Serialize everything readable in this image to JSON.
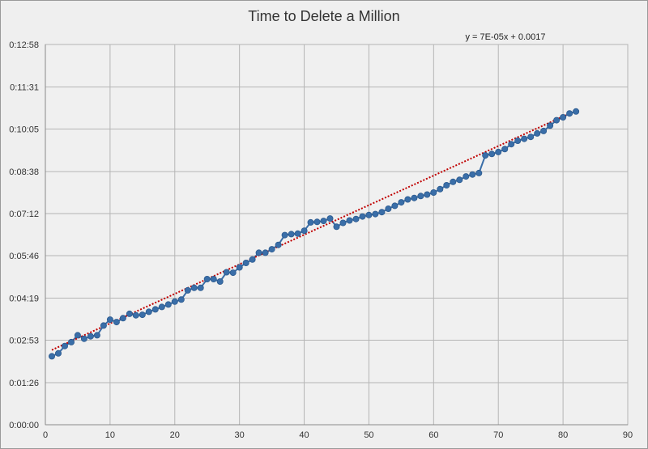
{
  "chart_data": {
    "type": "scatter",
    "title": "Time to Delete a Million",
    "xlabel": "",
    "ylabel": "",
    "xlim": [
      0,
      90
    ],
    "xticks": [
      0,
      10,
      20,
      30,
      40,
      50,
      60,
      70,
      80,
      90
    ],
    "ylim_seconds": [
      0,
      778
    ],
    "yticks": [
      "0:00:00",
      "0:01:26",
      "0:02:53",
      "0:04:19",
      "0:05:46",
      "0:07:12",
      "0:08:38",
      "0:10:05",
      "0:11:31",
      "0:12:58"
    ],
    "grid": true,
    "trendline": {
      "type": "linear",
      "equation": "y = 7E-05x + 0.0017",
      "slope_days": 7e-05,
      "intercept_days": 0.0017,
      "style": "dotted",
      "color": "#c00000"
    },
    "series": [
      {
        "color": "#3a6ea8",
        "x": [
          1,
          2,
          3,
          4,
          5,
          6,
          7,
          8,
          9,
          10,
          11,
          12,
          13,
          14,
          15,
          16,
          17,
          18,
          19,
          20,
          21,
          22,
          23,
          24,
          25,
          26,
          27,
          28,
          29,
          30,
          31,
          32,
          33,
          34,
          35,
          36,
          37,
          38,
          39,
          40,
          41,
          42,
          43,
          44,
          45,
          46,
          47,
          48,
          49,
          50,
          51,
          52,
          53,
          54,
          55,
          56,
          57,
          58,
          59,
          60,
          61,
          62,
          63,
          64,
          65,
          66,
          67,
          68,
          69,
          70,
          71,
          72,
          73,
          74,
          75,
          76,
          77,
          78,
          79,
          80,
          81,
          82
        ],
        "y_time": [
          "0:02:20",
          "0:02:26",
          "0:02:41",
          "0:02:49",
          "0:03:03",
          "0:02:56",
          "0:03:01",
          "0:03:03",
          "0:03:23",
          "0:03:35",
          "0:03:30",
          "0:03:38",
          "0:03:47",
          "0:03:44",
          "0:03:45",
          "0:03:51",
          "0:03:56",
          "0:04:01",
          "0:04:06",
          "0:04:12",
          "0:04:16",
          "0:04:35",
          "0:04:40",
          "0:04:40",
          "0:04:58",
          "0:04:58",
          "0:04:53",
          "0:05:12",
          "0:05:11",
          "0:05:22",
          "0:05:31",
          "0:05:38",
          "0:05:52",
          "0:05:52",
          "0:05:59",
          "0:06:08",
          "0:06:28",
          "0:06:30",
          "0:06:31",
          "0:06:37",
          "0:06:54",
          "0:06:55",
          "0:06:57",
          "0:07:02",
          "0:06:45",
          "0:06:53",
          "0:06:58",
          "0:07:01",
          "0:07:06",
          "0:07:09",
          "0:07:11",
          "0:07:15",
          "0:07:22",
          "0:07:28",
          "0:07:35",
          "0:07:41",
          "0:07:44",
          "0:07:48",
          "0:07:51",
          "0:07:55",
          "0:08:02",
          "0:08:10",
          "0:08:17",
          "0:08:21",
          "0:08:28",
          "0:08:32",
          "0:08:35",
          "0:09:11",
          "0:09:14",
          "0:09:18",
          "0:09:24",
          "0:09:34",
          "0:09:41",
          "0:09:45",
          "0:09:49",
          "0:09:56",
          "0:10:01",
          "0:10:12",
          "0:10:23",
          "0:10:29",
          "0:10:37",
          "0:10:41"
        ]
      }
    ]
  }
}
